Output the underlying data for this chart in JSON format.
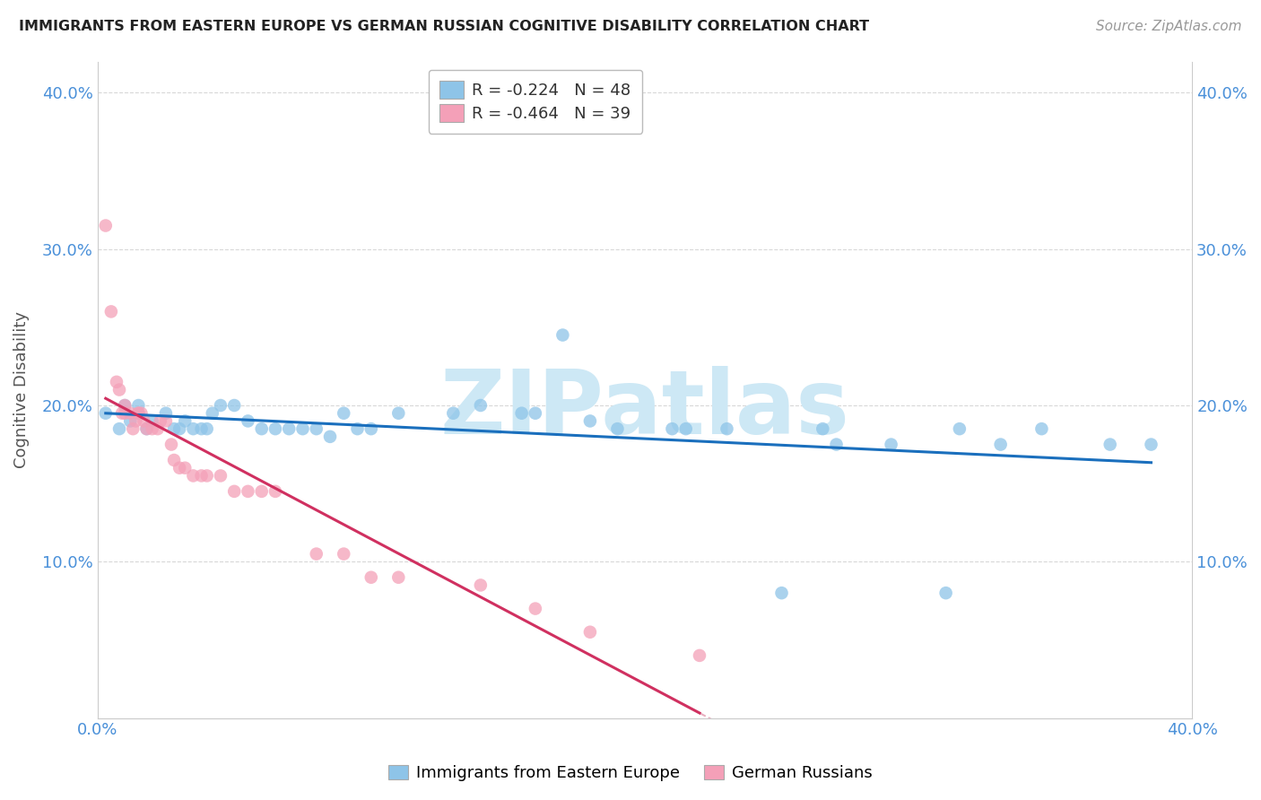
{
  "title": "IMMIGRANTS FROM EASTERN EUROPE VS GERMAN RUSSIAN COGNITIVE DISABILITY CORRELATION CHART",
  "source": "Source: ZipAtlas.com",
  "ylabel": "Cognitive Disability",
  "ytick_vals": [
    0.1,
    0.2,
    0.3,
    0.4
  ],
  "ytick_labels": [
    "10.0%",
    "20.0%",
    "30.0%",
    "40.0%"
  ],
  "xtick_labels_left": "0.0%",
  "xtick_labels_right": "40.0%",
  "legend_entry1": "R = -0.224   N = 48",
  "legend_entry2": "R = -0.464   N = 39",
  "legend_label1": "Immigrants from Eastern Europe",
  "legend_label2": "German Russians",
  "color_blue": "#8ec4e8",
  "color_pink": "#f4a0b8",
  "color_blue_line": "#1a6fbd",
  "color_pink_line": "#d03060",
  "color_pink_dashed": "#e8b0c0",
  "xlim": [
    0.0,
    0.4
  ],
  "ylim": [
    0.0,
    0.42
  ],
  "blue_scatter_x": [
    0.003,
    0.008,
    0.01,
    0.012,
    0.015,
    0.018,
    0.02,
    0.025,
    0.028,
    0.03,
    0.032,
    0.035,
    0.038,
    0.04,
    0.042,
    0.045,
    0.05,
    0.055,
    0.06,
    0.065,
    0.07,
    0.075,
    0.08,
    0.085,
    0.09,
    0.095,
    0.1,
    0.11,
    0.13,
    0.14,
    0.155,
    0.16,
    0.17,
    0.18,
    0.19,
    0.21,
    0.215,
    0.23,
    0.25,
    0.265,
    0.27,
    0.29,
    0.31,
    0.315,
    0.33,
    0.345,
    0.37,
    0.385
  ],
  "blue_scatter_y": [
    0.195,
    0.185,
    0.2,
    0.19,
    0.2,
    0.185,
    0.19,
    0.195,
    0.185,
    0.185,
    0.19,
    0.185,
    0.185,
    0.185,
    0.195,
    0.2,
    0.2,
    0.19,
    0.185,
    0.185,
    0.185,
    0.185,
    0.185,
    0.18,
    0.195,
    0.185,
    0.185,
    0.195,
    0.195,
    0.2,
    0.195,
    0.195,
    0.245,
    0.19,
    0.185,
    0.185,
    0.185,
    0.185,
    0.08,
    0.185,
    0.175,
    0.175,
    0.08,
    0.185,
    0.175,
    0.185,
    0.175,
    0.175
  ],
  "pink_scatter_x": [
    0.003,
    0.005,
    0.007,
    0.008,
    0.009,
    0.01,
    0.01,
    0.012,
    0.013,
    0.014,
    0.015,
    0.015,
    0.016,
    0.017,
    0.018,
    0.02,
    0.022,
    0.023,
    0.025,
    0.027,
    0.028,
    0.03,
    0.032,
    0.035,
    0.038,
    0.04,
    0.045,
    0.05,
    0.055,
    0.06,
    0.065,
    0.08,
    0.09,
    0.1,
    0.11,
    0.14,
    0.16,
    0.18,
    0.22
  ],
  "pink_scatter_y": [
    0.315,
    0.26,
    0.215,
    0.21,
    0.195,
    0.195,
    0.2,
    0.195,
    0.185,
    0.19,
    0.195,
    0.195,
    0.195,
    0.19,
    0.185,
    0.185,
    0.185,
    0.19,
    0.19,
    0.175,
    0.165,
    0.16,
    0.16,
    0.155,
    0.155,
    0.155,
    0.155,
    0.145,
    0.145,
    0.145,
    0.145,
    0.105,
    0.105,
    0.09,
    0.09,
    0.085,
    0.07,
    0.055,
    0.04
  ],
  "watermark_text": "ZIPatlas",
  "watermark_color": "#cde8f5",
  "background_color": "#ffffff",
  "grid_color": "#d8d8d8"
}
